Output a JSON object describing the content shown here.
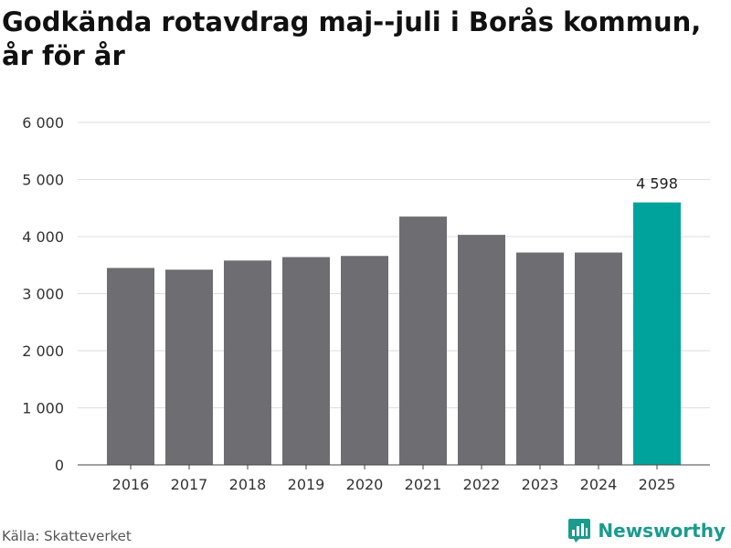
{
  "chart_data": {
    "type": "bar",
    "title": "Godkända rotavdrag maj--juli i Borås kommun, år för år",
    "categories": [
      "2016",
      "2017",
      "2018",
      "2019",
      "2020",
      "2021",
      "2022",
      "2023",
      "2024",
      "2025"
    ],
    "values": [
      3450,
      3420,
      3580,
      3640,
      3660,
      4350,
      4030,
      3720,
      3720,
      4598
    ],
    "ylim": [
      0,
      6000
    ],
    "yticks": [
      0,
      1000,
      2000,
      3000,
      4000,
      5000,
      6000
    ],
    "ytick_labels": [
      "0",
      "1 000",
      "2 000",
      "3 000",
      "4 000",
      "5 000",
      "6 000"
    ],
    "highlight_index": 9,
    "highlight_label": "4 598",
    "bar_color": "#6e6d72",
    "highlight_color": "#00a39b",
    "grid": true,
    "xlabel": "",
    "ylabel": ""
  },
  "source": "Källa: Skatteverket",
  "brand": {
    "name": "Newsworthy",
    "icon": "bar-chart-icon",
    "color": "#1a9b8e"
  }
}
